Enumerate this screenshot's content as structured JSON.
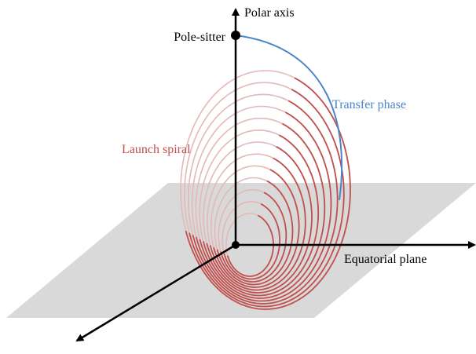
{
  "labels": {
    "polar_axis": "Polar axis",
    "pole_sitter": "Pole-sitter",
    "transfer_phase": "Transfer phase",
    "launch_spiral": "Launch spiral",
    "equatorial_plane": "Equatorial plane"
  },
  "colors": {
    "plane": "#d9d9d9",
    "axis": "#000000",
    "spiral": "#c0504d",
    "spiral_hidden": "#e3b9b7",
    "transfer": "#4a86c8",
    "text": "#000000"
  },
  "spiral_loops": 13
}
